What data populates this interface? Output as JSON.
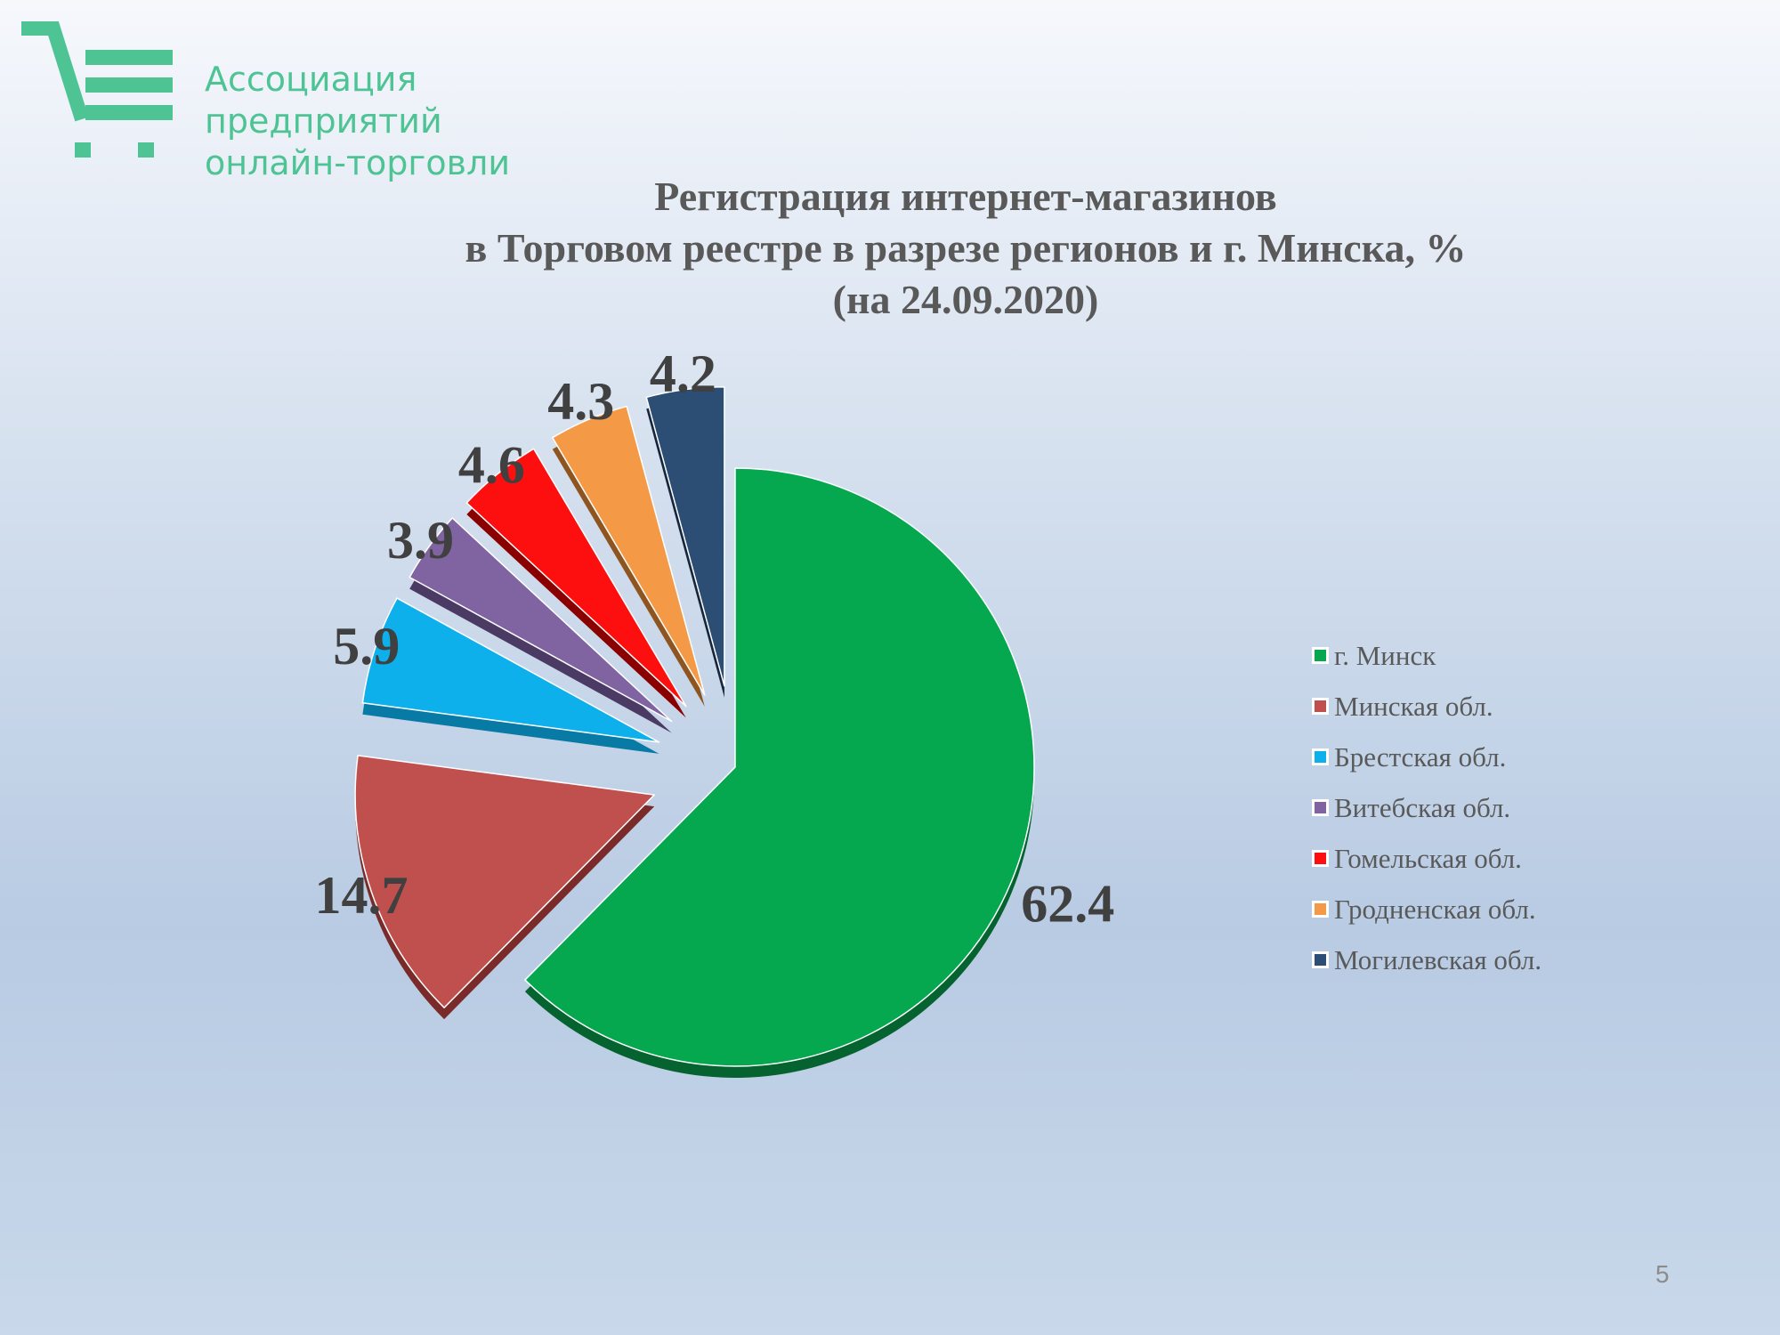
{
  "logo": {
    "lines": [
      "Ассоциация",
      "предприятий",
      "онлайн-торговли"
    ],
    "color": "#4ec495"
  },
  "title": {
    "line1": "Регистрация интернет-магазинов",
    "line2": "в Торговом реестре в разрезе регионов и г. Минска, %",
    "line3": "(на 24.09.2020)"
  },
  "chart_data": {
    "type": "pie",
    "variant": "exploded-3d",
    "title": "Регистрация интернет-магазинов в Торговом реестре в разрезе регионов и г. Минска, % (на 24.09.2020)",
    "legend_position": "right",
    "categories": [
      "г. Минск",
      "Минская обл.",
      "Брестская обл.",
      "Витебская обл.",
      "Гомельская обл.",
      "Гродненская обл.",
      "Могилевская обл."
    ],
    "values": [
      62.4,
      14.7,
      5.9,
      3.9,
      4.6,
      4.3,
      4.2
    ],
    "labels": [
      "62.4",
      "14.7",
      "5.9",
      "3.9",
      "4.6",
      "4.3",
      "4.2"
    ],
    "colors": [
      "#05a84f",
      "#c0504d",
      "#0eb0ec",
      "#8064a2",
      "#fd0f0f",
      "#f49a47",
      "#2c4d74"
    ],
    "side_colors": [
      "#04632f",
      "#7a2b29",
      "#077aa5",
      "#4b3a63",
      "#8a0000",
      "#8f5520",
      "#16273d"
    ]
  },
  "page_number": "5"
}
